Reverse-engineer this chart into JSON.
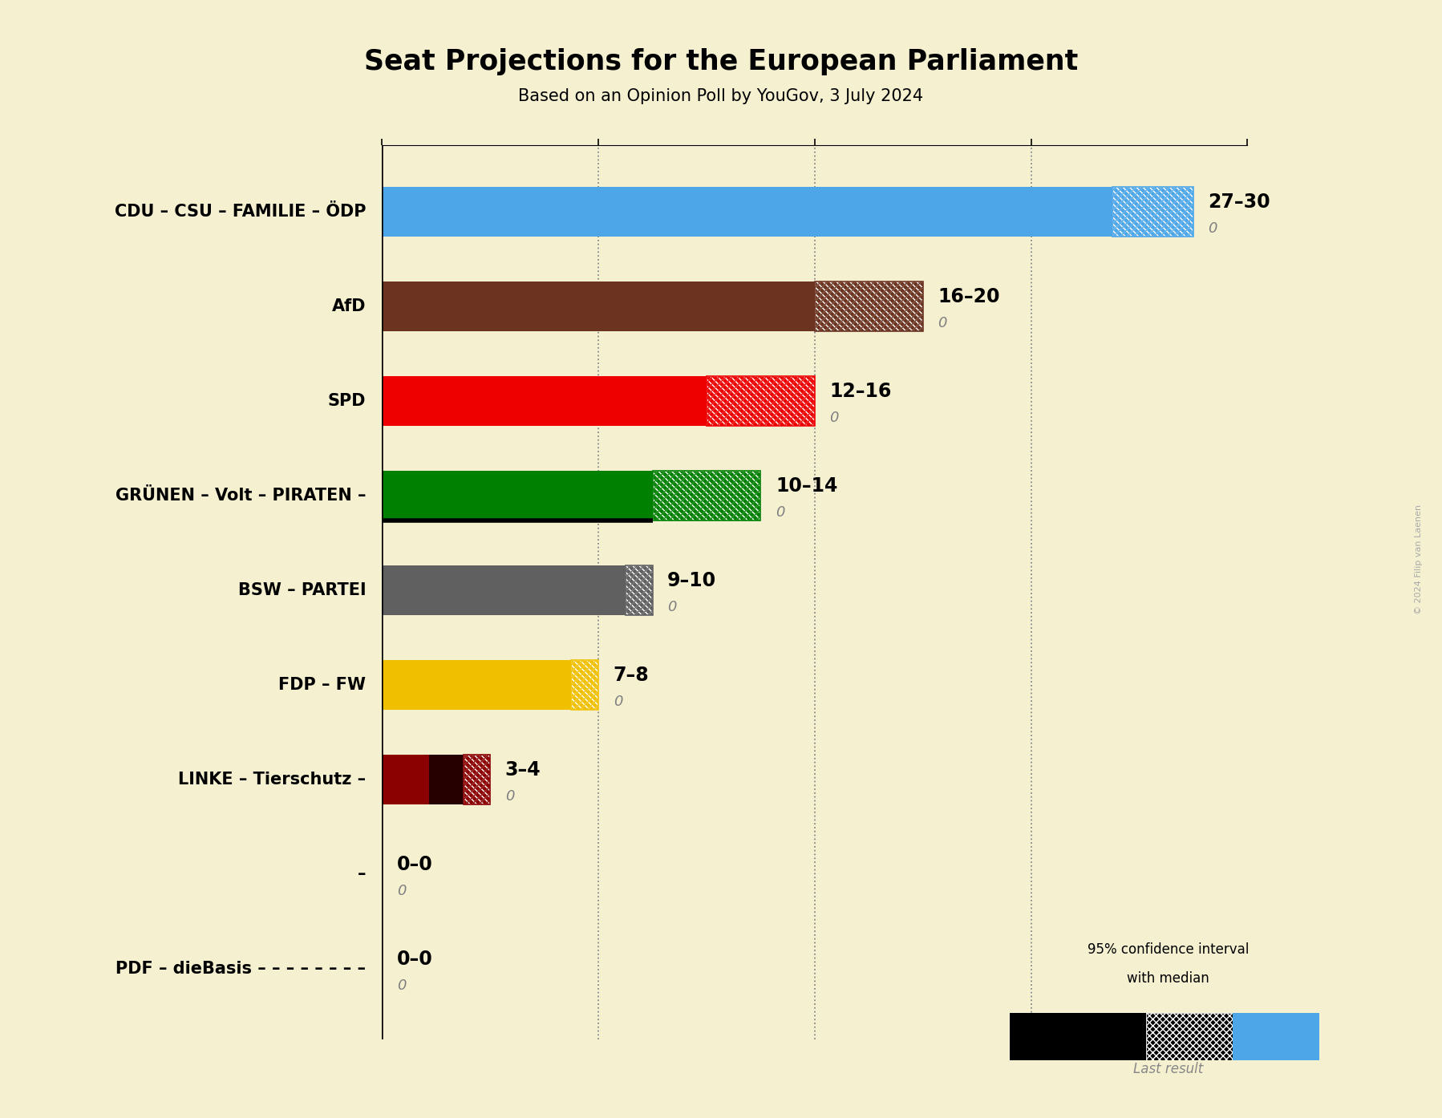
{
  "title": "Seat Projections for the European Parliament",
  "subtitle": "Based on an Opinion Poll by YouGov, 3 July 2024",
  "copyright": "© 2024 Filip van Laenen",
  "background_color": "#f5f0d0",
  "parties": [
    "CDU – CSU – FAMILIE – ÖDP",
    "AfD",
    "SPD",
    "GRÜNEN – Volt – PIRATEN –",
    "BSW – PARTEI",
    "FDP – FW",
    "LINKE – Tierschutz –",
    "–",
    "PDF – dieBasis – – – – – – – –"
  ],
  "min_seats": [
    27,
    16,
    12,
    10,
    9,
    7,
    3,
    0,
    0
  ],
  "max_seats": [
    30,
    20,
    16,
    14,
    10,
    8,
    4,
    0,
    0
  ],
  "bar_colors": [
    "#4da6e8",
    "#6b3320",
    "#ee0000",
    "#008000",
    "#606060",
    "#f0c000",
    "#8b0000",
    "#f5f0d0",
    "#f5f0d0"
  ],
  "label_ranges": [
    "27–30",
    "16–20",
    "12–16",
    "10–14",
    "9–10",
    "7–8",
    "3–4",
    "0–0",
    "0–0"
  ],
  "xmax": 32,
  "dotted_lines": [
    8,
    16,
    24
  ],
  "legend_text1": "95% confidence interval",
  "legend_text2": "with median",
  "legend_last": "Last result"
}
